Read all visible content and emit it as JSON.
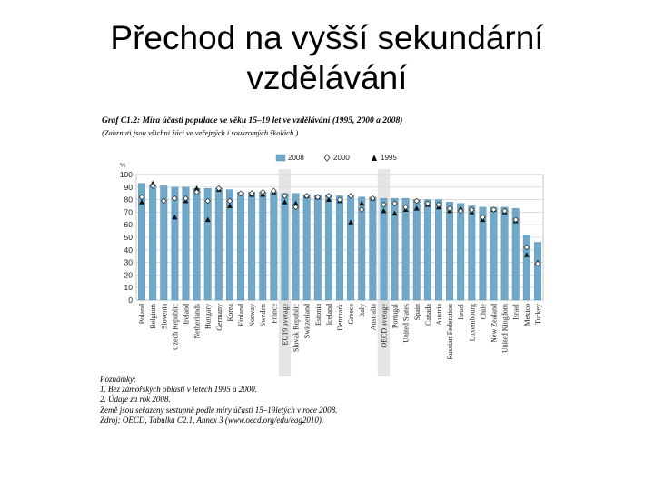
{
  "slide": {
    "title_line1": "Přechod na vyšší sekundární",
    "title_line2": "vzdělávání"
  },
  "chart_data": {
    "type": "bar",
    "title": "Graf C1.2: Míra účasti populace ve věku 15–19 let ve vzdělávání (1995, 2000 a 2008)",
    "subtitle": "(Zahrnuti jsou všichni žáci ve veřejných i soukromých školách.)",
    "ylabel": "%",
    "ylim": [
      0,
      100
    ],
    "yticks": [
      0,
      10,
      20,
      30,
      40,
      50,
      60,
      70,
      80,
      90,
      100
    ],
    "grid": true,
    "legend_position": "top",
    "categories": [
      "Poland",
      "Belgium",
      "Slovenia",
      "Czech Republic",
      "Ireland",
      "Netherlands",
      "Hungary",
      "Germany",
      "Korea",
      "Finland",
      "Norway",
      "Sweden",
      "France",
      "EU19 average",
      "Slovak Republic",
      "Switzerland",
      "Estonia",
      "Iceland",
      "Denmark",
      "Greece",
      "Italy",
      "Australia",
      "OECD average",
      "Portugal",
      "United States",
      "Spain",
      "Canada",
      "Austria",
      "Russian Federation",
      "Israel",
      "Luxembourg",
      "Chile",
      "New Zealand",
      "United Kingdom",
      "Israel",
      "Mexico",
      "Turkey"
    ],
    "highlighted": [
      "EU19 average",
      "OECD average"
    ],
    "series": [
      {
        "name": "2008",
        "kind": "bar",
        "color": "#6fa8c8",
        "values": [
          93,
          92,
          91,
          90,
          90,
          89,
          89,
          89,
          88,
          86,
          86,
          86,
          86,
          85,
          85,
          84,
          84,
          84,
          83,
          83,
          82,
          82,
          81,
          81,
          81,
          80,
          80,
          80,
          78,
          77,
          75,
          74,
          74,
          74,
          73,
          52,
          46
        ]
      },
      {
        "name": "2000",
        "kind": "marker",
        "marker": "diamond-open",
        "values": [
          82,
          91,
          79,
          81,
          81,
          86,
          79,
          89,
          79,
          85,
          85,
          86,
          87,
          83,
          74,
          83,
          82,
          83,
          80,
          83,
          72,
          81,
          76,
          77,
          74,
          79,
          77,
          76,
          73,
          71,
          72,
          66,
          72,
          71,
          64,
          42,
          29
        ]
      },
      {
        "name": "1995",
        "kind": "marker",
        "marker": "triangle-filled",
        "values": [
          78,
          93,
          null,
          66,
          79,
          89,
          64,
          88,
          75,
          85,
          84,
          84,
          86,
          78,
          77,
          83,
          82,
          80,
          79,
          62,
          77,
          81,
          71,
          69,
          72,
          73,
          76,
          74,
          71,
          73,
          70,
          64,
          72,
          70,
          63,
          36,
          30
        ]
      }
    ]
  },
  "notes": {
    "heading": "Poznámky:",
    "lines": [
      "1. Bez zámořských oblastí v letech 1995 a 2000.",
      "2. Údaje za rok 2008.",
      "Země jsou seřazeny sestupně podle míry účasti 15–19letých v roce 2008.",
      "Zdroj: OECD, Tabulka C2.1, Annex 3 (www.oecd.org/edu/eag2010)."
    ]
  }
}
